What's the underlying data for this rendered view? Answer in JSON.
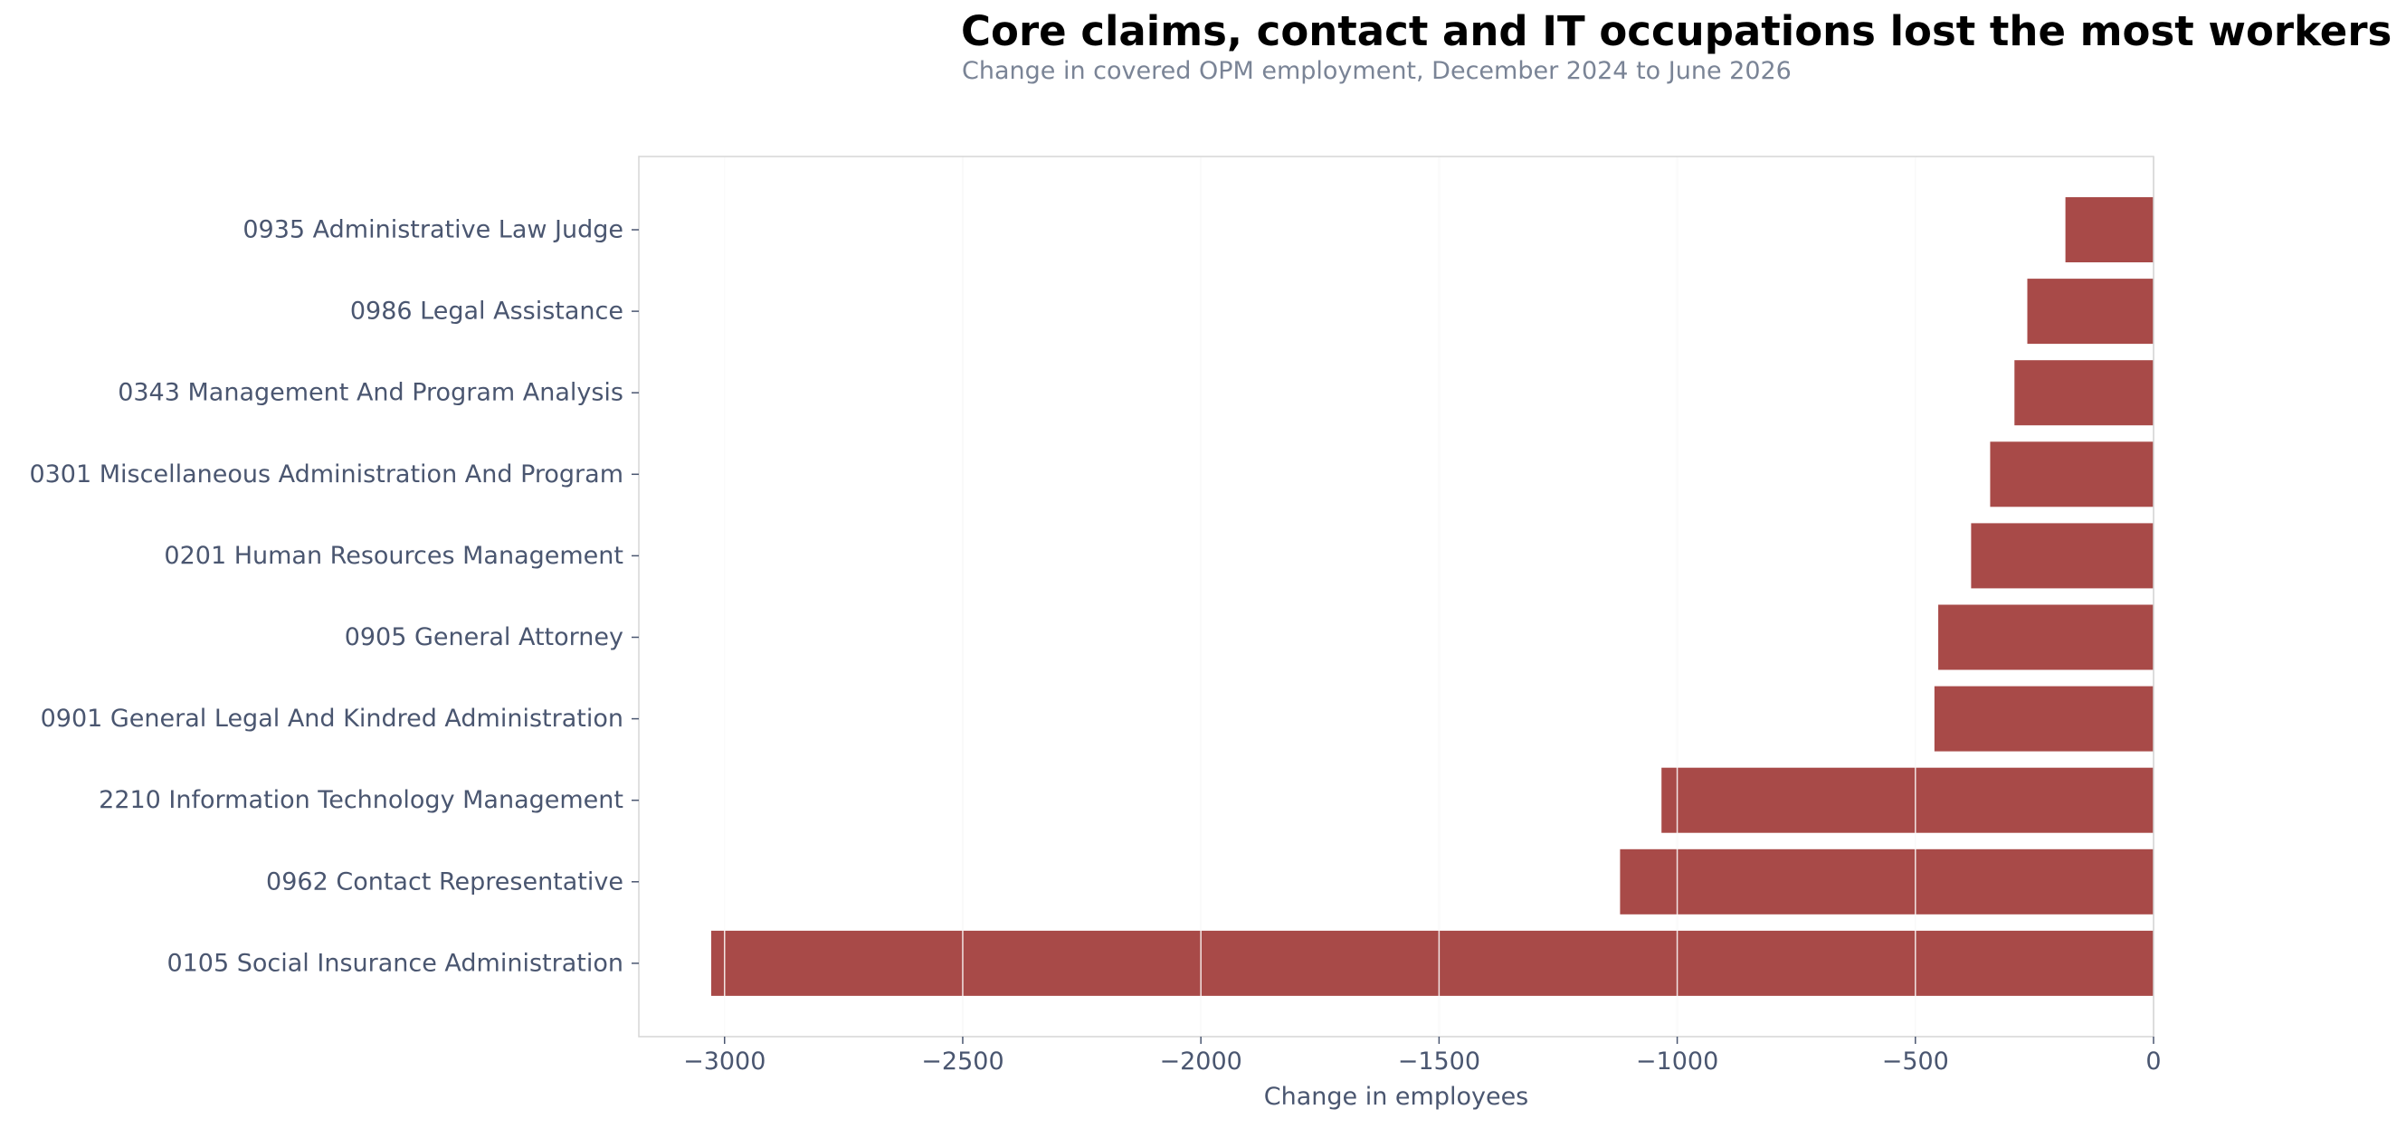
{
  "chart_data": {
    "type": "bar",
    "orientation": "horizontal",
    "title": "Core claims, contact and IT occupations lost the most workers",
    "subtitle": "Change in covered OPM employment, December 2024 to June 2026",
    "xlabel": "Change in employees",
    "ylabel": "",
    "xlim": [
      -3180,
      0
    ],
    "x_ticks": [
      -3000,
      -2500,
      -2000,
      -1500,
      -1000,
      -500,
      0
    ],
    "x_tick_labels": [
      "−3000",
      "−2500",
      "−2000",
      "−1500",
      "−1000",
      "−500",
      "0"
    ],
    "grid": "vertical",
    "categories": [
      "0935 Administrative Law Judge",
      "0986 Legal Assistance",
      "0343 Management And Program Analysis",
      "0301 Miscellaneous Administration And Program",
      "0201 Human Resources Management",
      "0905 General Attorney",
      "0901 General Legal And Kindred Administration",
      "2210 Information Technology Management",
      "0962 Contact Representative",
      "0105 Social Insurance Administration"
    ],
    "values": [
      -185,
      -265,
      -292,
      -343,
      -383,
      -452,
      -460,
      -1033,
      -1120,
      -3028
    ],
    "colors": {
      "bar": "#a84a48",
      "grid": "#e3e3e3",
      "spine": "#d6d6d6",
      "text": "#4a5670",
      "title": "#000000",
      "subtitle": "#7a8496"
    }
  }
}
